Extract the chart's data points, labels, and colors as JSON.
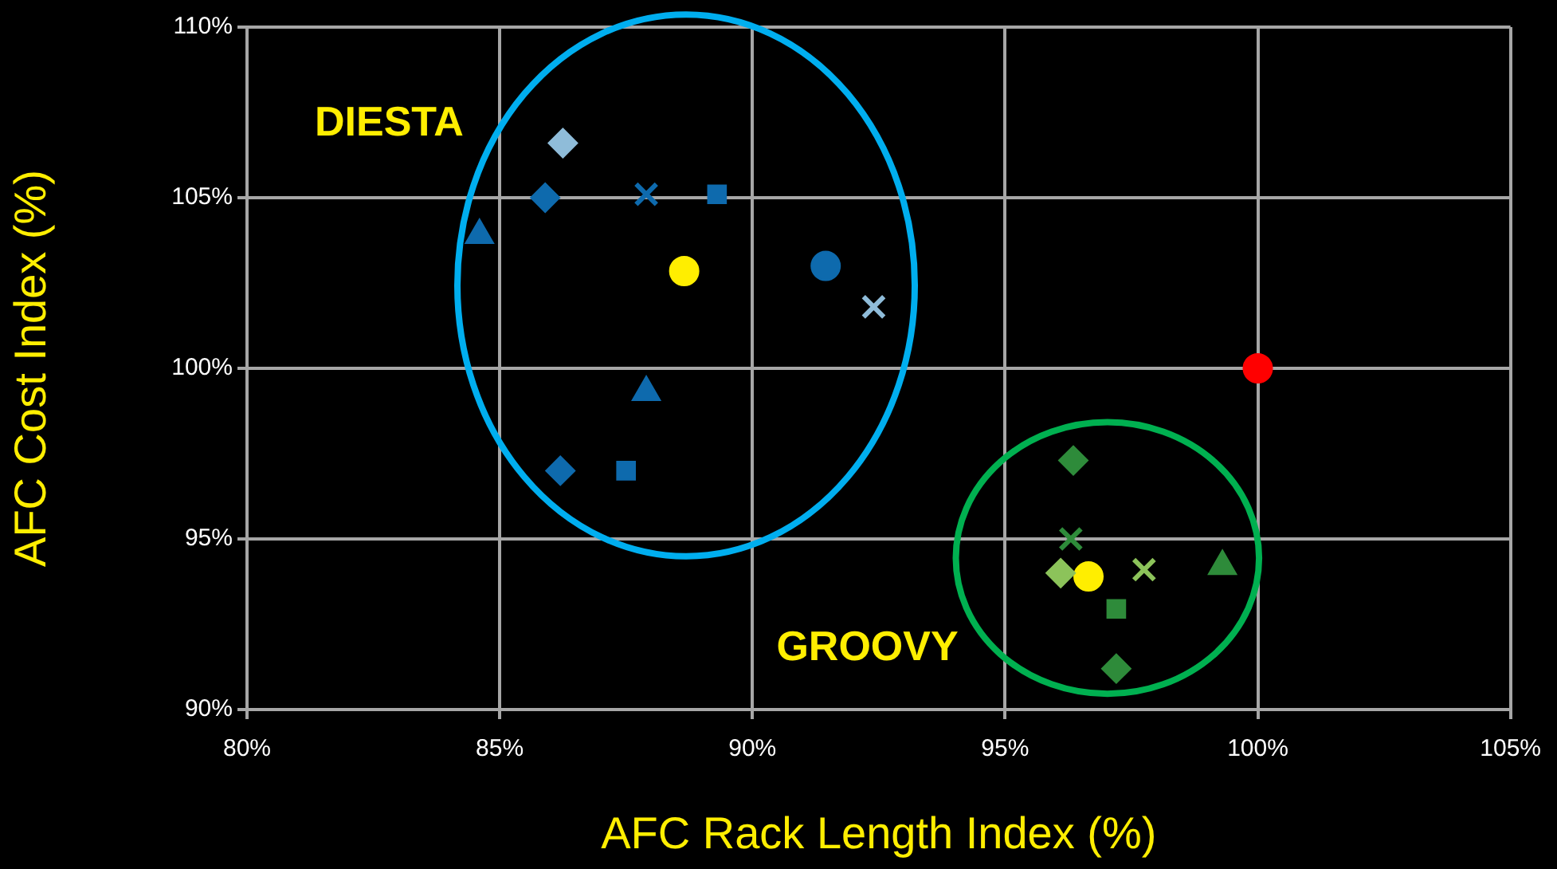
{
  "chart_data": {
    "type": "scatter",
    "xlabel": "AFC Rack Length Index (%)",
    "ylabel": "AFC Cost Index (%)",
    "xlim": [
      80,
      105
    ],
    "xticks": [
      {
        "value": 80,
        "label": "80%"
      },
      {
        "value": 85,
        "label": "85%"
      },
      {
        "value": 90,
        "label": "90%"
      },
      {
        "value": 95,
        "label": "95%"
      },
      {
        "value": 100,
        "label": "100%"
      },
      {
        "value": 105,
        "label": "105%"
      }
    ],
    "ylim": [
      90,
      110
    ],
    "yticks": [
      {
        "value": 90,
        "label": "90%"
      },
      {
        "value": 95,
        "label": "95%"
      },
      {
        "value": 100,
        "label": "100%"
      },
      {
        "value": 105,
        "label": "105%"
      },
      {
        "value": 110,
        "label": "110%"
      }
    ],
    "grid": true,
    "legend": false,
    "annotations": [
      "DIESTA",
      "GROOVY"
    ],
    "series": [
      {
        "color": "#8fbcd9",
        "marker": "diamond",
        "x": [
          86.25
        ],
        "values": [
          106.6
        ]
      },
      {
        "color": "#0e6aad",
        "marker": "diamond",
        "x": [
          85.9
        ],
        "values": [
          105.0
        ]
      },
      {
        "color": "#0e6aad",
        "marker": "cross",
        "x": [
          87.9
        ],
        "values": [
          105.1
        ]
      },
      {
        "color": "#0e6aad",
        "marker": "square",
        "x": [
          89.3
        ],
        "values": [
          105.1
        ]
      },
      {
        "color": "#0e6aad",
        "marker": "triangle",
        "x": [
          84.6
        ],
        "values": [
          103.9
        ]
      },
      {
        "color": "#ffee00",
        "marker": "circle",
        "x": [
          88.65
        ],
        "values": [
          102.85
        ]
      },
      {
        "color": "#0e6aad",
        "marker": "circle",
        "x": [
          91.45
        ],
        "values": [
          103.0
        ]
      },
      {
        "color": "#8fbcd9",
        "marker": "cross",
        "x": [
          92.4
        ],
        "values": [
          101.8
        ]
      },
      {
        "color": "#0e6aad",
        "marker": "triangle",
        "x": [
          87.9
        ],
        "values": [
          99.3
        ]
      },
      {
        "color": "#0e6aad",
        "marker": "diamond",
        "x": [
          86.2
        ],
        "values": [
          97.0
        ]
      },
      {
        "color": "#0e6aad",
        "marker": "square",
        "x": [
          87.5
        ],
        "values": [
          97.0
        ]
      },
      {
        "color": "#ff0000",
        "marker": "circle",
        "x": [
          100
        ],
        "values": [
          100
        ]
      },
      {
        "color": "#2e8b3a",
        "marker": "diamond",
        "x": [
          96.35
        ],
        "values": [
          97.3
        ]
      },
      {
        "color": "#2e8b3a",
        "marker": "cross",
        "x": [
          96.3
        ],
        "values": [
          95.0
        ]
      },
      {
        "color": "#8cc35a",
        "marker": "diamond",
        "x": [
          96.1
        ],
        "values": [
          94.0
        ]
      },
      {
        "color": "#ffee00",
        "marker": "circle",
        "x": [
          96.65
        ],
        "values": [
          93.9
        ]
      },
      {
        "color": "#8cc35a",
        "marker": "cross",
        "x": [
          97.75
        ],
        "values": [
          94.1
        ]
      },
      {
        "color": "#2e8b3a",
        "marker": "triangle",
        "x": [
          99.3
        ],
        "values": [
          94.2
        ]
      },
      {
        "color": "#2e8b3a",
        "marker": "square",
        "x": [
          97.2
        ],
        "values": [
          92.95
        ]
      },
      {
        "color": "#2e8b3a",
        "marker": "diamond",
        "x": [
          97.2
        ],
        "values": [
          91.2
        ]
      }
    ]
  }
}
